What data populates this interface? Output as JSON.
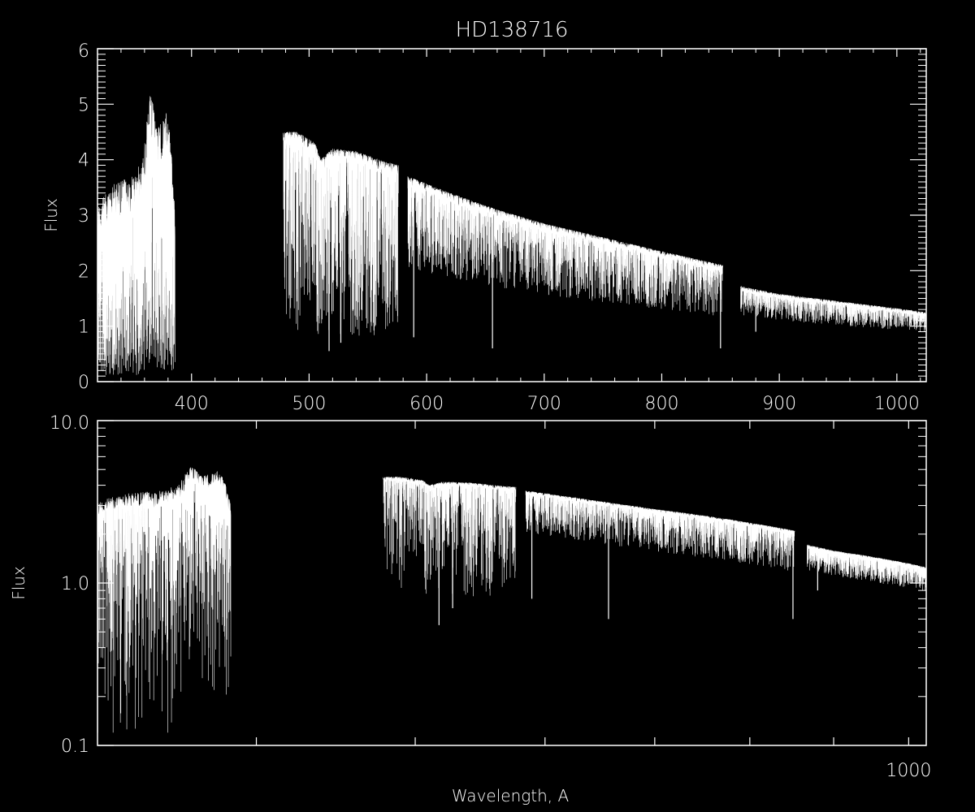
{
  "colors": {
    "background": "#000000",
    "foreground": "#ffffff"
  },
  "chart_data": [
    {
      "type": "line",
      "title": "HD138716",
      "xlabel": "",
      "ylabel": "Flux",
      "xscale": "linear",
      "yscale": "linear",
      "xlim": [
        320,
        1025
      ],
      "ylim": [
        0,
        6
      ],
      "xticks": [
        400,
        500,
        600,
        700,
        800,
        900,
        1000
      ],
      "xtick_labels": [
        "400",
        "500",
        "600",
        "700",
        "800",
        "900",
        "1000"
      ],
      "yticks": [
        0,
        1,
        2,
        3,
        4,
        5,
        6
      ],
      "ytick_labels": [
        "0",
        "1",
        "2",
        "3",
        "4",
        "5",
        "6"
      ],
      "grid": false
    },
    {
      "type": "line",
      "title": "",
      "xlabel": "Wavelength, A",
      "ylabel": "Flux",
      "xscale": "log",
      "yscale": "log",
      "xlim": [
        320,
        1025
      ],
      "ylim": [
        0.1,
        10
      ],
      "xticks": [
        400,
        500,
        600,
        700,
        800,
        900,
        1000
      ],
      "xtick_labels": [
        "",
        "",
        "",
        "",
        "",
        "",
        "1000"
      ],
      "yticks": [
        0.1,
        1,
        10
      ],
      "ytick_labels": [
        "0.1",
        "1.0",
        "10.0"
      ],
      "grid": false
    }
  ],
  "spectrum": {
    "segments": [
      {
        "range": [
          320,
          386
        ],
        "continuum": [
          [
            320,
            3.2
          ],
          [
            335,
            3.6
          ],
          [
            350,
            3.7
          ],
          [
            358,
            4.0
          ],
          [
            365,
            5.2
          ],
          [
            372,
            4.6
          ],
          [
            380,
            4.9
          ],
          [
            386,
            3.2
          ]
        ],
        "max_depth": 0.97
      },
      {
        "range": [
          478,
          576
        ],
        "continuum": [
          [
            478,
            4.5
          ],
          [
            490,
            4.5
          ],
          [
            505,
            4.3
          ],
          [
            510,
            4.0
          ],
          [
            520,
            4.2
          ],
          [
            540,
            4.15
          ],
          [
            560,
            4.0
          ],
          [
            576,
            3.9
          ]
        ],
        "max_depth": 0.8
      },
      {
        "range": [
          584,
          852
        ],
        "continuum": [
          [
            584,
            3.7
          ],
          [
            620,
            3.4
          ],
          [
            660,
            3.1
          ],
          [
            700,
            2.85
          ],
          [
            750,
            2.6
          ],
          [
            800,
            2.35
          ],
          [
            852,
            2.1
          ]
        ],
        "max_depth": 0.45
      },
      {
        "range": [
          867,
          1025
        ],
        "continuum": [
          [
            867,
            1.72
          ],
          [
            900,
            1.58
          ],
          [
            950,
            1.45
          ],
          [
            1000,
            1.32
          ],
          [
            1025,
            1.25
          ]
        ],
        "max_depth": 0.3
      }
    ],
    "strong_lines": [
      [
        517,
        0.55
      ],
      [
        527,
        0.7
      ],
      [
        589,
        0.8
      ],
      [
        656,
        0.6
      ],
      [
        850,
        0.6
      ],
      [
        854,
        0.7
      ],
      [
        880,
        0.9
      ]
    ]
  }
}
